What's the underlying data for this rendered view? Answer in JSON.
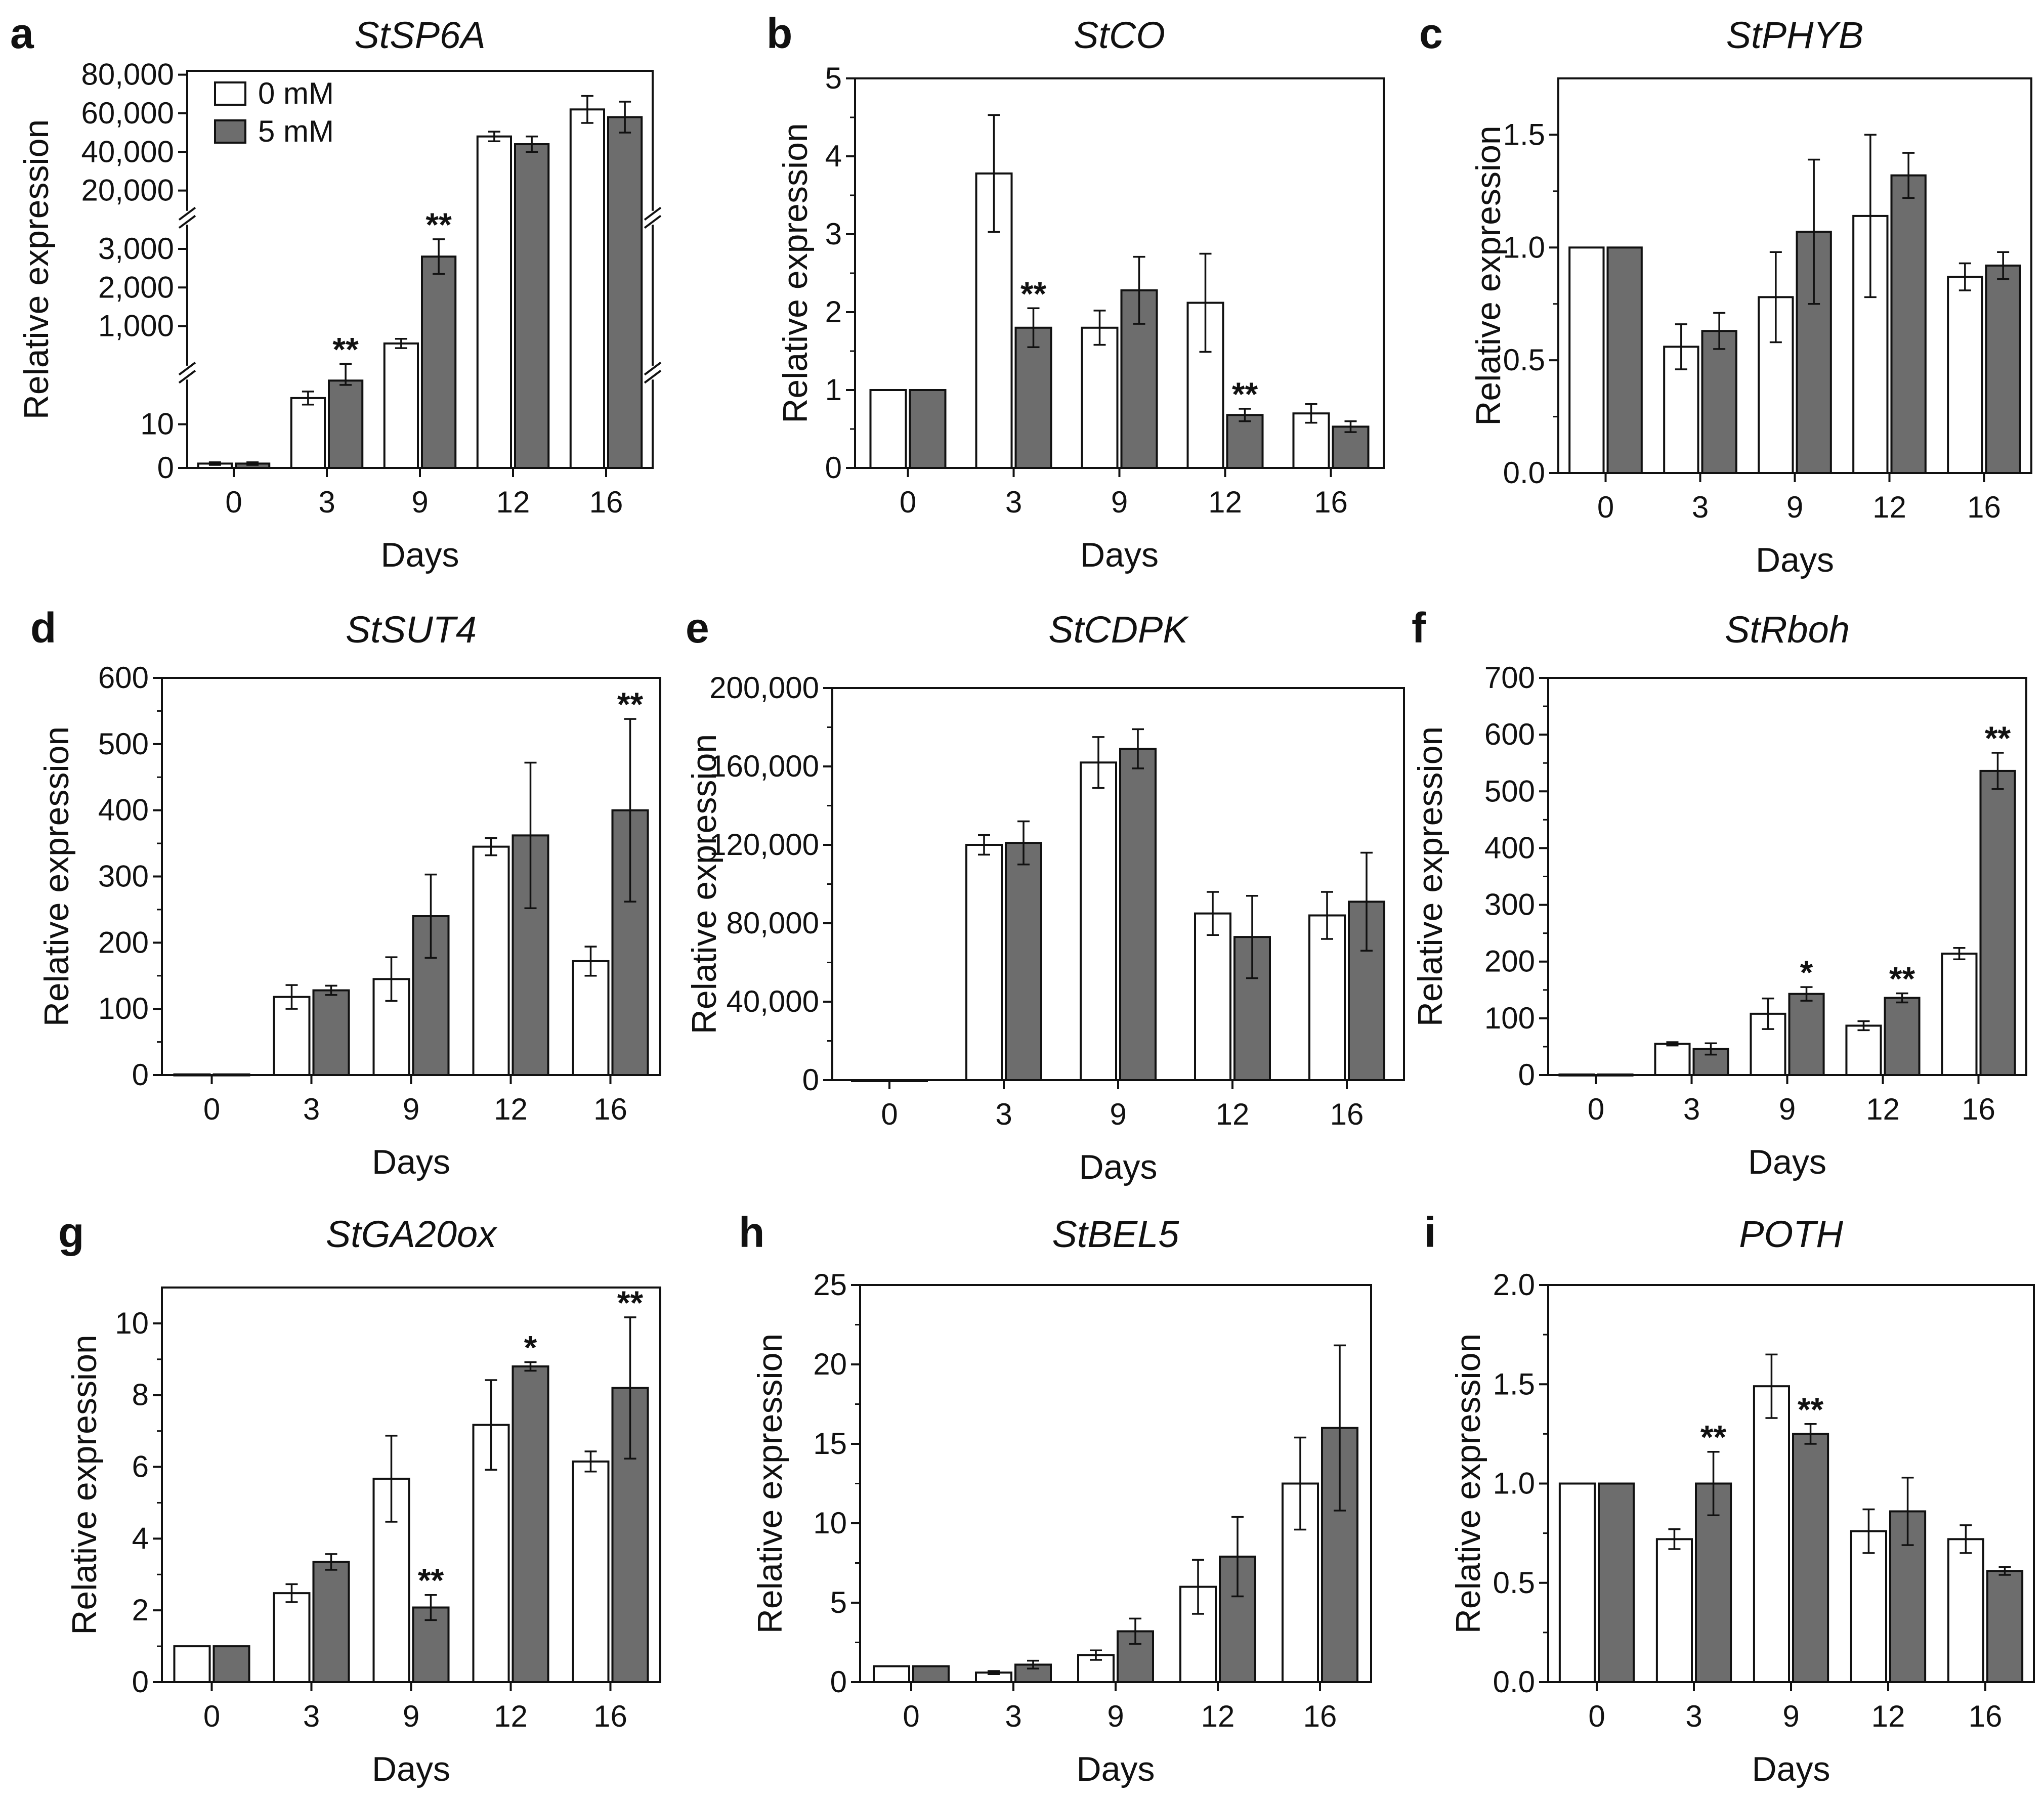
{
  "figure": {
    "background": "#ffffff"
  },
  "legend": {
    "entries": [
      {
        "label": "0 mM",
        "color": "#ffffff"
      },
      {
        "label": "5 mM",
        "color": "#6d6d6d"
      }
    ]
  },
  "chart_data": [
    {
      "panel": "a",
      "title": "StSP6A",
      "type": "bar",
      "axis_break": true,
      "categories": [
        "0",
        "3",
        "9",
        "12",
        "16"
      ],
      "xlabel": "Days",
      "ylabel": "Relative expression",
      "series": [
        {
          "name": "0 mM",
          "values": [
            1,
            16,
            550,
            48000,
            62000
          ],
          "errors": [
            0.3,
            1.5,
            120,
            2500,
            7000
          ]
        },
        {
          "name": "5 mM",
          "values": [
            1,
            20,
            2800,
            44000,
            58000
          ],
          "errors": [
            0.3,
            1,
            450,
            4000,
            8000
          ]
        }
      ],
      "significance": [
        {
          "category": "3",
          "series": "5 mM",
          "label": "**"
        },
        {
          "category": "9",
          "series": "5 mM",
          "label": "**"
        }
      ],
      "segments": [
        {
          "ylim": [
            0,
            20
          ],
          "ticks": [
            0,
            10
          ],
          "tick_labels": [
            "0",
            "10"
          ]
        },
        {
          "ylim": [
            0,
            3600
          ],
          "ticks": [
            1000,
            2000,
            3000
          ],
          "tick_labels": [
            "1,000",
            "2,000",
            "3,000"
          ]
        },
        {
          "ylim": [
            10000,
            82000
          ],
          "ticks": [
            20000,
            40000,
            60000,
            80000
          ],
          "tick_labels": [
            "20,000",
            "40,000",
            "60,000",
            "80,000"
          ]
        }
      ]
    },
    {
      "panel": "b",
      "title": "StCO",
      "type": "bar",
      "categories": [
        "0",
        "3",
        "9",
        "12",
        "16"
      ],
      "xlabel": "Days",
      "ylabel": "Relative expression",
      "ylim": [
        0,
        5
      ],
      "yticks": [
        0,
        1,
        2,
        3,
        4,
        5
      ],
      "ytick_labels": [
        "0",
        "1",
        "2",
        "3",
        "4",
        "5"
      ],
      "series": [
        {
          "name": "0 mM",
          "values": [
            1,
            3.78,
            1.8,
            2.12,
            0.7
          ],
          "errors": [
            0,
            0.75,
            0.22,
            0.63,
            0.12
          ]
        },
        {
          "name": "5 mM",
          "values": [
            1,
            1.8,
            2.28,
            0.68,
            0.53
          ],
          "errors": [
            0,
            0.25,
            0.43,
            0.08,
            0.07
          ]
        }
      ],
      "significance": [
        {
          "category": "3",
          "series": "5 mM",
          "label": "**"
        },
        {
          "category": "12",
          "series": "5 mM",
          "label": "**"
        }
      ]
    },
    {
      "panel": "c",
      "title": "StPHYB",
      "type": "bar",
      "categories": [
        "0",
        "3",
        "9",
        "12",
        "16"
      ],
      "xlabel": "Days",
      "ylabel": "Relative expression",
      "ylim": [
        0,
        1.75
      ],
      "yticks": [
        0,
        0.5,
        1.0,
        1.5
      ],
      "ytick_labels": [
        "0.0",
        "0.5",
        "1.0",
        "1.5"
      ],
      "series": [
        {
          "name": "0 mM",
          "values": [
            1.0,
            0.56,
            0.78,
            1.14,
            0.87
          ],
          "errors": [
            0,
            0.1,
            0.2,
            0.36,
            0.06
          ]
        },
        {
          "name": "5 mM",
          "values": [
            1.0,
            0.63,
            1.07,
            1.32,
            0.92
          ],
          "errors": [
            0,
            0.08,
            0.32,
            0.1,
            0.06
          ]
        }
      ],
      "significance": []
    },
    {
      "panel": "d",
      "title": "StSUT4",
      "type": "bar",
      "categories": [
        "0",
        "3",
        "9",
        "12",
        "16"
      ],
      "xlabel": "Days",
      "ylabel": "Relative expression",
      "ylim": [
        0,
        600
      ],
      "yticks": [
        0,
        100,
        200,
        300,
        400,
        500,
        600
      ],
      "ytick_labels": [
        "0",
        "100",
        "200",
        "300",
        "400",
        "500",
        "600"
      ],
      "series": [
        {
          "name": "0 mM",
          "values": [
            1,
            118,
            145,
            345,
            172
          ],
          "errors": [
            0,
            18,
            33,
            13,
            22
          ]
        },
        {
          "name": "5 mM",
          "values": [
            1,
            128,
            240,
            362,
            400
          ],
          "errors": [
            0,
            7,
            63,
            110,
            138
          ]
        }
      ],
      "significance": [
        {
          "category": "16",
          "series": "5 mM",
          "label": "**"
        }
      ]
    },
    {
      "panel": "e",
      "title": "StCDPK",
      "type": "bar",
      "categories": [
        "0",
        "3",
        "9",
        "12",
        "16"
      ],
      "xlabel": "Days",
      "ylabel": "Relative expression",
      "ylim": [
        0,
        200000
      ],
      "yticks": [
        0,
        40000,
        80000,
        120000,
        160000,
        200000
      ],
      "ytick_labels": [
        "0",
        "40,000",
        "80,000",
        "120,000",
        "160,000",
        "200,000"
      ],
      "series": [
        {
          "name": "0 mM",
          "values": [
            1,
            120000,
            162000,
            85000,
            84000
          ],
          "errors": [
            0,
            5000,
            13000,
            11000,
            12000
          ]
        },
        {
          "name": "5 mM",
          "values": [
            1,
            121000,
            169000,
            73000,
            91000
          ],
          "errors": [
            0,
            11000,
            10000,
            21000,
            25000
          ]
        }
      ],
      "significance": []
    },
    {
      "panel": "f",
      "title": "StRboh",
      "type": "bar",
      "categories": [
        "0",
        "3",
        "9",
        "12",
        "16"
      ],
      "xlabel": "Days",
      "ylabel": "Relative expression",
      "ylim": [
        0,
        700
      ],
      "yticks": [
        0,
        100,
        200,
        300,
        400,
        500,
        600,
        700
      ],
      "ytick_labels": [
        "0",
        "100",
        "200",
        "300",
        "400",
        "500",
        "600",
        "700"
      ],
      "series": [
        {
          "name": "0 mM",
          "values": [
            1,
            55,
            108,
            87,
            214
          ],
          "errors": [
            0,
            3,
            27,
            8,
            10
          ]
        },
        {
          "name": "5 mM",
          "values": [
            1,
            46,
            143,
            136,
            536
          ],
          "errors": [
            0,
            10,
            12,
            8,
            32
          ]
        }
      ],
      "significance": [
        {
          "category": "9",
          "series": "5 mM",
          "label": "*"
        },
        {
          "category": "12",
          "series": "5 mM",
          "label": "**"
        },
        {
          "category": "16",
          "series": "5 mM",
          "label": "**"
        }
      ]
    },
    {
      "panel": "g",
      "title": "StGA20ox",
      "type": "bar",
      "categories": [
        "0",
        "3",
        "9",
        "12",
        "16"
      ],
      "xlabel": "Days",
      "ylabel": "Relative expression",
      "ylim": [
        0,
        11
      ],
      "yticks": [
        0,
        2,
        4,
        6,
        8,
        10
      ],
      "ytick_labels": [
        "0",
        "2",
        "4",
        "6",
        "8",
        "10"
      ],
      "series": [
        {
          "name": "0 mM",
          "values": [
            1,
            2.48,
            5.67,
            7.17,
            6.15
          ],
          "errors": [
            0,
            0.25,
            1.2,
            1.25,
            0.28
          ]
        },
        {
          "name": "5 mM",
          "values": [
            1,
            3.35,
            2.08,
            8.8,
            8.2
          ],
          "errors": [
            0,
            0.22,
            0.35,
            0.12,
            1.97
          ]
        }
      ],
      "significance": [
        {
          "category": "9",
          "series": "5 mM",
          "label": "**"
        },
        {
          "category": "12",
          "series": "5 mM",
          "label": "*"
        },
        {
          "category": "16",
          "series": "5 mM",
          "label": "**"
        }
      ]
    },
    {
      "panel": "h",
      "title": "StBEL5",
      "type": "bar",
      "categories": [
        "0",
        "3",
        "9",
        "12",
        "16"
      ],
      "xlabel": "Days",
      "ylabel": "Relative expression",
      "ylim": [
        0,
        25
      ],
      "yticks": [
        0,
        5,
        10,
        15,
        20,
        25
      ],
      "ytick_labels": [
        "0",
        "5",
        "10",
        "15",
        "20",
        "25"
      ],
      "series": [
        {
          "name": "0 mM",
          "values": [
            1,
            0.6,
            1.7,
            6.0,
            12.5
          ],
          "errors": [
            0,
            0.1,
            0.3,
            1.7,
            2.9
          ]
        },
        {
          "name": "5 mM",
          "values": [
            1,
            1.1,
            3.2,
            7.9,
            16.0
          ],
          "errors": [
            0,
            0.25,
            0.8,
            2.5,
            5.2
          ]
        }
      ],
      "significance": []
    },
    {
      "panel": "i",
      "title": "POTH",
      "type": "bar",
      "categories": [
        "0",
        "3",
        "9",
        "12",
        "16"
      ],
      "xlabel": "Days",
      "ylabel": "Relative expression",
      "ylim": [
        0,
        2.0
      ],
      "yticks": [
        0,
        0.5,
        1.0,
        1.5,
        2.0
      ],
      "ytick_labels": [
        "0.0",
        "0.5",
        "1.0",
        "1.5",
        "2.0"
      ],
      "series": [
        {
          "name": "0 mM",
          "values": [
            1.0,
            0.72,
            1.49,
            0.76,
            0.72
          ],
          "errors": [
            0,
            0.05,
            0.16,
            0.11,
            0.07
          ]
        },
        {
          "name": "5 mM",
          "values": [
            1.0,
            1.0,
            1.25,
            0.86,
            0.56
          ],
          "errors": [
            0,
            0.16,
            0.05,
            0.17,
            0.02
          ]
        }
      ],
      "significance": [
        {
          "category": "3",
          "series": "5 mM",
          "label": "**"
        },
        {
          "category": "9",
          "series": "5 mM",
          "label": "**"
        }
      ]
    }
  ]
}
